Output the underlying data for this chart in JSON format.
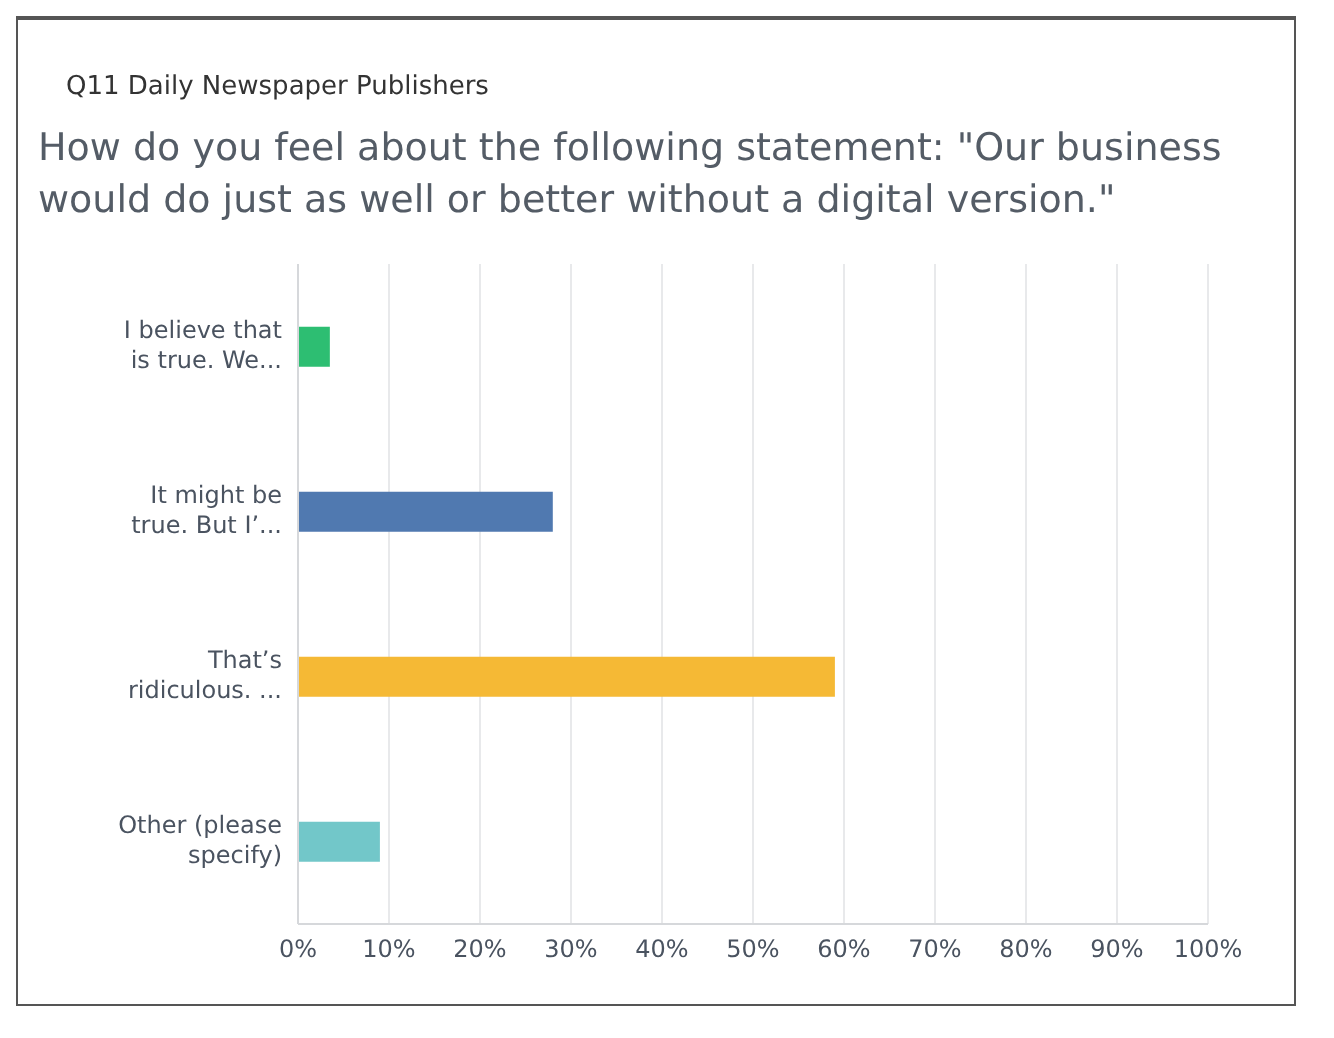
{
  "chart_data": {
    "type": "bar",
    "orientation": "horizontal",
    "title": "Q11 Daily Newspaper Publishers",
    "subtitle": "How do you feel about the following statement: \"Our business would do just as well or better without a digital version.\"",
    "categories": [
      "I believe that is true. We...",
      "It might be true. But I’...",
      "That’s ridiculous. ...",
      "Other (please specify)"
    ],
    "values": [
      3.5,
      28,
      59,
      9
    ],
    "colors": [
      "#2dbe72",
      "#5079b0",
      "#f5b935",
      "#72c7c9"
    ],
    "xlim": [
      0,
      100
    ],
    "xticks": [
      {
        "value": 0,
        "label": "0%"
      },
      {
        "value": 10,
        "label": "10%"
      },
      {
        "value": 20,
        "label": "20%"
      },
      {
        "value": 30,
        "label": "30%"
      },
      {
        "value": 40,
        "label": "40%"
      },
      {
        "value": 50,
        "label": "50%"
      },
      {
        "value": 60,
        "label": "60%"
      },
      {
        "value": 70,
        "label": "70%"
      },
      {
        "value": 80,
        "label": "80%"
      },
      {
        "value": 90,
        "label": "90%"
      },
      {
        "value": 100,
        "label": "100%"
      }
    ],
    "grid": "x"
  }
}
